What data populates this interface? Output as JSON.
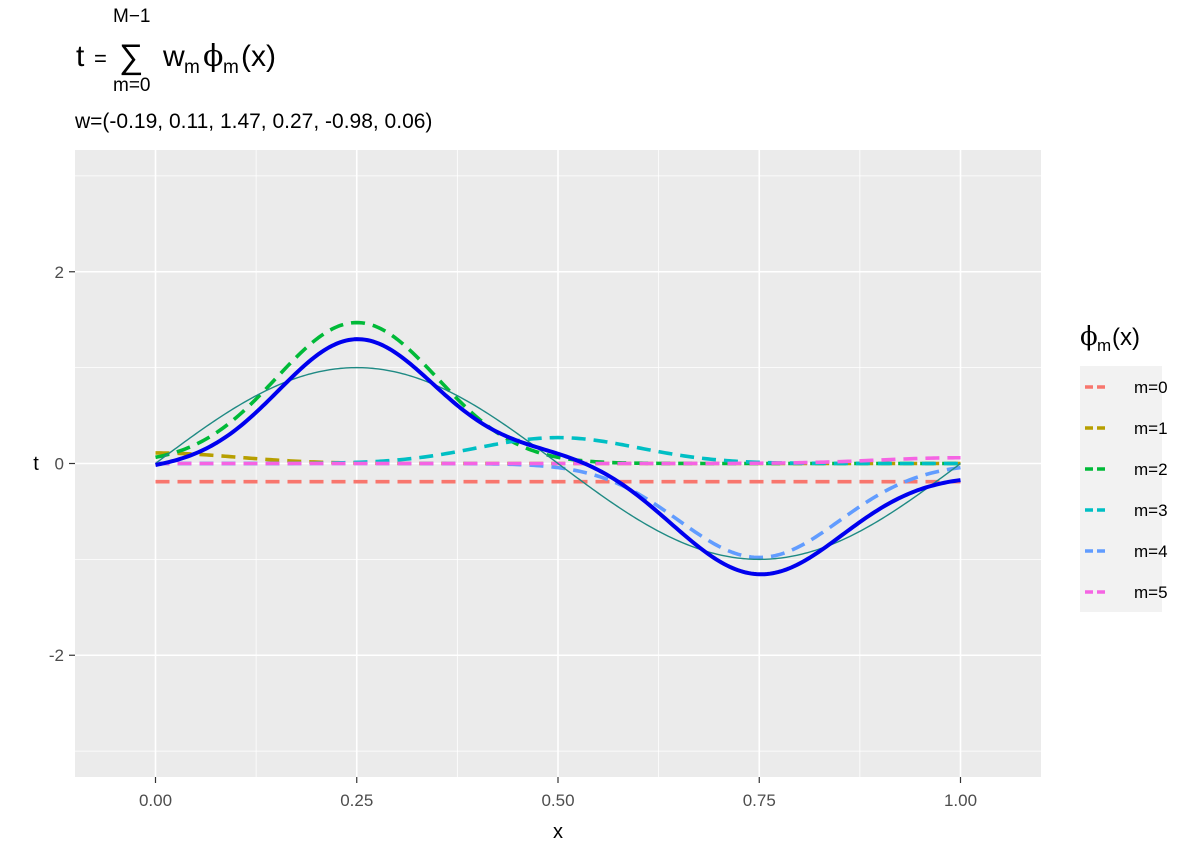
{
  "chart_data": {
    "type": "line",
    "title": {
      "lhs": "t",
      "equals": "=",
      "sum_symbol": "∑",
      "sum_upper": "M−1",
      "sum_lower": "m=0",
      "w": "w",
      "w_sub": "m",
      "phi": "ϕ",
      "phi_sub": "m",
      "arg": "(x)"
    },
    "subtitle": "w=(-0.19, 0.11, 1.47, 0.27, -0.98, 0.06)",
    "xlabel": "x",
    "ylabel": "t",
    "xlim": [
      -0.1,
      1.1
    ],
    "ylim": [
      -3.27,
      3.27
    ],
    "x_ticks": [
      {
        "value": 0.0,
        "label": "0.00"
      },
      {
        "value": 0.25,
        "label": "0.25"
      },
      {
        "value": 0.5,
        "label": "0.50"
      },
      {
        "value": 0.75,
        "label": "0.75"
      },
      {
        "value": 1.0,
        "label": "1.00"
      }
    ],
    "y_ticks": [
      {
        "value": -2,
        "label": "-2"
      },
      {
        "value": 0,
        "label": "0"
      },
      {
        "value": 2,
        "label": "2"
      }
    ],
    "grid": true,
    "background": "#ebebeb",
    "legend": {
      "position": "right",
      "title_main": "ϕ",
      "title_sub": "m",
      "title_arg": "(x)",
      "entries": [
        {
          "label": "m=0",
          "color": "#f8766d"
        },
        {
          "label": "m=1",
          "color": "#b79f00"
        },
        {
          "label": "m=2",
          "color": "#00ba38"
        },
        {
          "label": "m=3",
          "color": "#00bfc4"
        },
        {
          "label": "m=4",
          "color": "#619cff"
        },
        {
          "label": "m=5",
          "color": "#f564e3"
        }
      ]
    },
    "basis": {
      "type": "gaussian",
      "centers": [
        0,
        0.25,
        0.5,
        0.75,
        1.0
      ],
      "sigma": 0.1
    },
    "weights": [
      -0.19,
      0.11,
      1.47,
      0.27,
      -0.98,
      0.06
    ],
    "series": [
      {
        "type": "weighted_basis",
        "m": 0,
        "color": "#f8766d",
        "style": "dashed"
      },
      {
        "type": "weighted_basis",
        "m": 1,
        "color": "#b79f00",
        "style": "dashed"
      },
      {
        "type": "weighted_basis",
        "m": 2,
        "color": "#00ba38",
        "style": "dashed"
      },
      {
        "type": "weighted_basis",
        "m": 3,
        "color": "#00bfc4",
        "style": "dashed"
      },
      {
        "type": "weighted_basis",
        "m": 4,
        "color": "#619cff",
        "style": "dashed"
      },
      {
        "type": "weighted_basis",
        "m": 5,
        "color": "#f564e3",
        "style": "dashed"
      },
      {
        "type": "sine",
        "color": "#1f8a84",
        "style": "solid-thin"
      },
      {
        "type": "sum",
        "color": "#0000ee",
        "style": "solid-thick"
      }
    ]
  }
}
